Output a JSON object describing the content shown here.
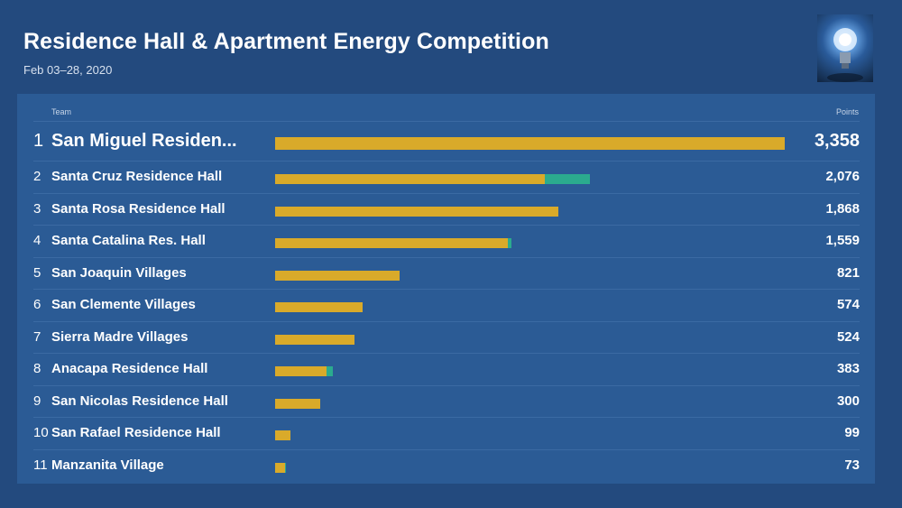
{
  "header": {
    "title": "Residence Hall & Apartment Energy Competition",
    "subtitle": "Feb 03–28, 2020"
  },
  "table": {
    "team_label": "Team",
    "points_label": "Points"
  },
  "colors": {
    "primary_bar": "#d9aa2a",
    "secondary_bar": "#2bab8e",
    "background": "#234a7e",
    "panel": "#2b5b95"
  },
  "chart_data": {
    "type": "bar",
    "orientation": "horizontal",
    "stacked": true,
    "title": "Residence Hall & Apartment Energy Competition",
    "subtitle": "Feb 03–28, 2020",
    "xlabel": "Points",
    "ylabel": "Team",
    "grid": false,
    "legend": "none",
    "max_value": 3358,
    "rows": [
      {
        "rank": "1",
        "name": "San Miguel Residen...",
        "points": "3,358",
        "primary": 3358,
        "secondary": 0
      },
      {
        "rank": "2",
        "name": "Santa Cruz Residence Hall",
        "points": "2,076",
        "primary": 1780,
        "secondary": 296
      },
      {
        "rank": "3",
        "name": "Santa Rosa Residence Hall",
        "points": "1,868",
        "primary": 1868,
        "secondary": 0
      },
      {
        "rank": "4",
        "name": "Santa Catalina Res. Hall",
        "points": "1,559",
        "primary": 1533,
        "secondary": 26
      },
      {
        "rank": "5",
        "name": "San Joaquin Villages",
        "points": "821",
        "primary": 821,
        "secondary": 0
      },
      {
        "rank": "6",
        "name": "San Clemente Villages",
        "points": "574",
        "primary": 574,
        "secondary": 0
      },
      {
        "rank": "7",
        "name": "Sierra Madre Villages",
        "points": "524",
        "primary": 524,
        "secondary": 0
      },
      {
        "rank": "8",
        "name": "Anacapa Residence Hall",
        "points": "383",
        "primary": 340,
        "secondary": 43
      },
      {
        "rank": "9",
        "name": "San Nicolas Residence Hall",
        "points": "300",
        "primary": 300,
        "secondary": 0
      },
      {
        "rank": "10",
        "name": "San Rafael Residence Hall",
        "points": "99",
        "primary": 99,
        "secondary": 0
      },
      {
        "rank": "11",
        "name": "Manzanita Village",
        "points": "73",
        "primary": 68,
        "secondary": 5
      }
    ]
  }
}
